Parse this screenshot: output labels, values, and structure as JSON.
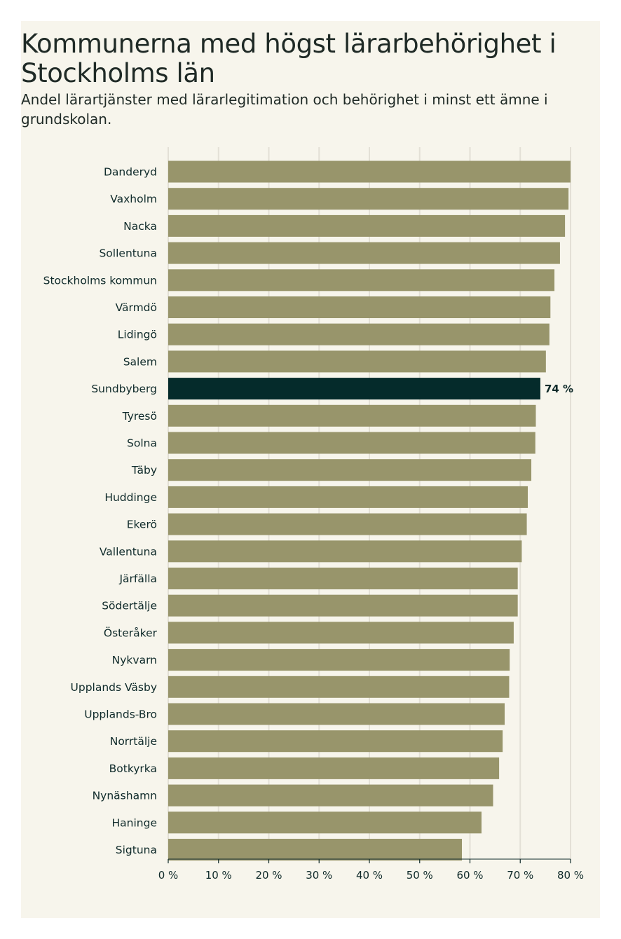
{
  "chart_data": {
    "type": "bar",
    "orientation": "horizontal",
    "title": "Kommunerna med högst lärarbehörighet i Stockholms län",
    "subtitle": "Andel lärartjänster med lärarlegitimation och behörighet i minst ett ämne i grundskolan.",
    "xlabel": "",
    "ylabel": "",
    "xlim": [
      0,
      80
    ],
    "ticks": [
      0,
      10,
      20,
      30,
      40,
      50,
      60,
      70,
      80
    ],
    "tick_labels": [
      "0 %",
      "10 %",
      "20 %",
      "30 %",
      "40 %",
      "50 %",
      "60 %",
      "70 %",
      "80 %"
    ],
    "grid": true,
    "categories": [
      "Danderyd",
      "Vaxholm",
      "Nacka",
      "Sollentuna",
      "Stockholms kommun",
      "Värmdö",
      "Lidingö",
      "Salem",
      "Sundbyberg",
      "Tyresö",
      "Solna",
      "Täby",
      "Huddinge",
      "Ekerö",
      "Vallentuna",
      "Järfälla",
      "Södertälje",
      "Österåker",
      "Nykvarn",
      "Upplands Väsby",
      "Upplands-Bro",
      "Norrtälje",
      "Botkyrka",
      "Nynäshamn",
      "Haninge",
      "Sigtuna"
    ],
    "values": [
      80.0,
      79.6,
      78.9,
      77.9,
      76.8,
      76.0,
      75.8,
      75.1,
      74.0,
      73.1,
      73.0,
      72.2,
      71.5,
      71.3,
      70.3,
      69.5,
      69.5,
      68.7,
      67.9,
      67.8,
      66.9,
      66.5,
      65.8,
      64.6,
      62.3,
      58.4
    ],
    "highlight": {
      "category": "Sundbyberg",
      "label": "74 %",
      "color": "#052b2b"
    },
    "bar_color": "#98956b",
    "grid_color": "#e3e0d6"
  }
}
